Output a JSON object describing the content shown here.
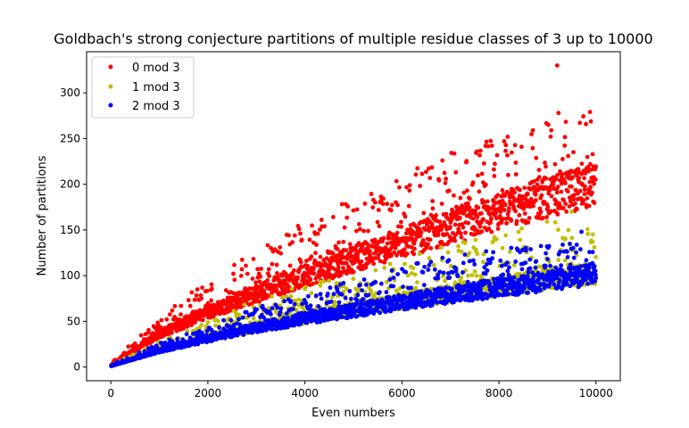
{
  "chart_data": {
    "type": "scatter",
    "title": "Goldbach's strong conjecture partitions of multiple residue classes of 3 up to 10000",
    "xlabel": "Even numbers",
    "ylabel": "Number of partitions",
    "xlim": [
      -500,
      10500
    ],
    "ylim": [
      -15,
      345
    ],
    "x_ticks": [
      0,
      2000,
      4000,
      6000,
      8000,
      10000
    ],
    "y_ticks": [
      0,
      50,
      100,
      150,
      200,
      250,
      300
    ],
    "x_tick_labels": [
      "0",
      "2000",
      "4000",
      "6000",
      "8000",
      "10000"
    ],
    "y_tick_labels": [
      "0",
      "50",
      "100",
      "150",
      "200",
      "250",
      "300"
    ],
    "legend_position": "top-left",
    "grid": false,
    "series": [
      {
        "name": "0 mod 3",
        "color": "#ff0000",
        "x_range": [
          6,
          9996
        ],
        "x_step": 6,
        "trend": [
          [
            0,
            2
          ],
          [
            1000,
            36
          ],
          [
            2000,
            60
          ],
          [
            3000,
            80
          ],
          [
            4000,
            100
          ],
          [
            5000,
            118
          ],
          [
            6000,
            136
          ],
          [
            7000,
            152
          ],
          [
            8000,
            170
          ],
          [
            9000,
            186
          ],
          [
            10000,
            200
          ]
        ],
        "upper_band": [
          [
            0,
            4
          ],
          [
            1000,
            55
          ],
          [
            2000,
            95
          ],
          [
            3000,
            130
          ],
          [
            4000,
            160
          ],
          [
            5000,
            185
          ],
          [
            6000,
            210
          ],
          [
            7000,
            235
          ],
          [
            8000,
            255
          ],
          [
            9000,
            275
          ],
          [
            10000,
            290
          ]
        ],
        "max_point": {
          "x": 9200,
          "y": 330
        }
      },
      {
        "name": "1 mod 3",
        "color": "#bfbf00",
        "x_range": [
          4,
          9994
        ],
        "x_step": 6,
        "trend": [
          [
            0,
            1
          ],
          [
            1000,
            18
          ],
          [
            2000,
            32
          ],
          [
            3000,
            44
          ],
          [
            4000,
            54
          ],
          [
            5000,
            63
          ],
          [
            6000,
            72
          ],
          [
            7000,
            80
          ],
          [
            8000,
            88
          ],
          [
            9000,
            96
          ],
          [
            10000,
            103
          ]
        ],
        "upper_band": [
          [
            0,
            2
          ],
          [
            1000,
            28
          ],
          [
            2000,
            50
          ],
          [
            3000,
            75
          ],
          [
            4000,
            90
          ],
          [
            5000,
            105
          ],
          [
            6000,
            120
          ],
          [
            7000,
            135
          ],
          [
            8000,
            145
          ],
          [
            9000,
            160
          ],
          [
            10000,
            165
          ]
        ],
        "max_point": {
          "x": 9500,
          "y": 170
        }
      },
      {
        "name": "2 mod 3",
        "color": "#0000ff",
        "x_range": [
          8,
          9998
        ],
        "x_step": 6,
        "trend": [
          [
            0,
            1
          ],
          [
            1000,
            18
          ],
          [
            2000,
            31
          ],
          [
            3000,
            43
          ],
          [
            4000,
            53
          ],
          [
            5000,
            62
          ],
          [
            6000,
            71
          ],
          [
            7000,
            79
          ],
          [
            8000,
            87
          ],
          [
            9000,
            94
          ],
          [
            10000,
            101
          ]
        ],
        "upper_band": [
          [
            0,
            2
          ],
          [
            1000,
            26
          ],
          [
            2000,
            45
          ],
          [
            3000,
            65
          ],
          [
            4000,
            80
          ],
          [
            5000,
            95
          ],
          [
            6000,
            110
          ],
          [
            7000,
            122
          ],
          [
            8000,
            132
          ],
          [
            9000,
            140
          ],
          [
            10000,
            145
          ]
        ],
        "max_point": {
          "x": 9700,
          "y": 148
        }
      }
    ]
  }
}
